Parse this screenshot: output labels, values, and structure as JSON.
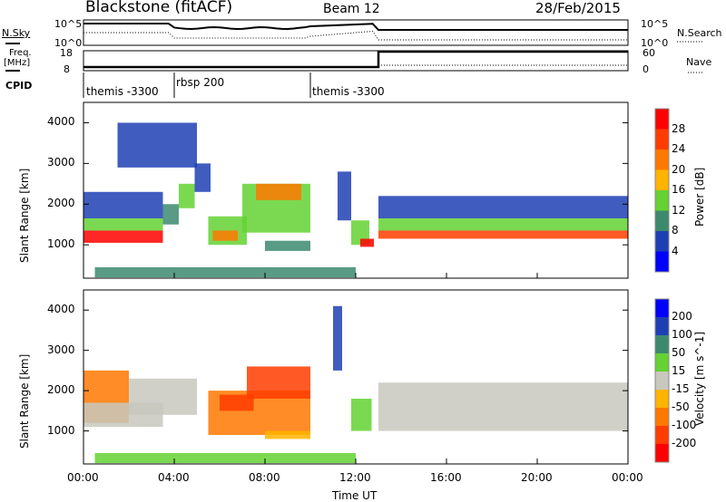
{
  "header": {
    "title": "Blackstone (fitACF)",
    "beam": "Beam 12",
    "date": "28/Feb/2015"
  },
  "noise": {
    "left_label": "N.Sky",
    "right_label": "N.Search",
    "left_ticks": [
      "10^5",
      "10^0"
    ],
    "right_ticks": [
      "10^5",
      "10^0"
    ]
  },
  "freq": {
    "left_label_1": "Freq.",
    "left_label_2": "[MHz]",
    "right_label": "Nave",
    "left_ticks": [
      "18",
      "8"
    ],
    "right_ticks": [
      "60",
      "0"
    ]
  },
  "cpid": {
    "label": "CPID",
    "segments": [
      {
        "name": "themis -3300",
        "start": 0
      },
      {
        "name": "rbsp 200",
        "start": 4
      },
      {
        "name": "themis -3300",
        "start": 10
      }
    ]
  },
  "xaxis": {
    "label": "Time UT",
    "ticks": [
      "00:00",
      "04:00",
      "08:00",
      "12:00",
      "16:00",
      "20:00",
      "00:00"
    ]
  },
  "chart_data": [
    {
      "type": "heatmap",
      "title": "Power",
      "ylabel": "Slant Range [km]",
      "xlabel": "Time UT",
      "xlim": [
        0,
        24
      ],
      "ylim": [
        180,
        4500
      ],
      "yticks": [
        "1000",
        "2000",
        "3000",
        "4000"
      ],
      "colorbar": {
        "label": "Power [dB]",
        "ticks": [
          "28",
          "24",
          "20",
          "16",
          "12",
          "8",
          "4"
        ],
        "colors": [
          "#0000ff",
          "#1e3fb4",
          "#3c8a6e",
          "#64d232",
          "#ffb400",
          "#ff7800",
          "#ff3c00",
          "#ff0000"
        ]
      },
      "regions": [
        {
          "t": [
            0,
            3.5
          ],
          "r": [
            1650,
            2300
          ],
          "v": 6
        },
        {
          "t": [
            0,
            3.5
          ],
          "r": [
            1350,
            1650
          ],
          "v": 14
        },
        {
          "t": [
            0,
            3.5
          ],
          "r": [
            1050,
            1350
          ],
          "v": 28
        },
        {
          "t": [
            3.5,
            4.2
          ],
          "r": [
            1500,
            2000
          ],
          "v": 10
        },
        {
          "t": [
            4.2,
            4.9
          ],
          "r": [
            1900,
            2500
          ],
          "v": 12
        },
        {
          "t": [
            4.9,
            5.6
          ],
          "r": [
            2300,
            3000
          ],
          "v": 6
        },
        {
          "t": [
            1.5,
            5
          ],
          "r": [
            2900,
            4000
          ],
          "v": 4
        },
        {
          "t": [
            5.5,
            7.2
          ],
          "r": [
            1000,
            1700
          ],
          "v": 14
        },
        {
          "t": [
            5.7,
            6.8
          ],
          "r": [
            1100,
            1350
          ],
          "v": 20
        },
        {
          "t": [
            7,
            10
          ],
          "r": [
            1300,
            2500
          ],
          "v": 14
        },
        {
          "t": [
            7.6,
            9.6
          ],
          "r": [
            2100,
            2500
          ],
          "v": 20
        },
        {
          "t": [
            8,
            10
          ],
          "r": [
            850,
            1100
          ],
          "v": 10
        },
        {
          "t": [
            11.2,
            11.8
          ],
          "r": [
            1600,
            2800
          ],
          "v": 6
        },
        {
          "t": [
            11.8,
            12.6
          ],
          "r": [
            1000,
            1600
          ],
          "v": 14
        },
        {
          "t": [
            12.2,
            12.8
          ],
          "r": [
            950,
            1150
          ],
          "v": 28
        },
        {
          "t": [
            13,
            24
          ],
          "r": [
            1650,
            2200
          ],
          "v": 6
        },
        {
          "t": [
            13,
            24
          ],
          "r": [
            1350,
            1650
          ],
          "v": 14
        },
        {
          "t": [
            13,
            24
          ],
          "r": [
            1150,
            1350
          ],
          "v": 26
        },
        {
          "t": [
            0.5,
            12
          ],
          "r": [
            200,
            450
          ],
          "v": 8
        }
      ]
    },
    {
      "type": "heatmap",
      "title": "Velocity",
      "ylabel": "Slant Range [km]",
      "xlabel": "Time UT",
      "xlim": [
        0,
        24
      ],
      "ylim": [
        180,
        4500
      ],
      "yticks": [
        "1000",
        "2000",
        "3000",
        "4000"
      ],
      "colorbar": {
        "label": "Velocity [m s^-1]",
        "ticks": [
          "200",
          "100",
          "50",
          "15",
          "-15",
          "-50",
          "-100",
          "-200"
        ],
        "colors": [
          "#ff0000",
          "#ff3c00",
          "#ff7800",
          "#ffb400",
          "#c8c8be",
          "#64d232",
          "#3c8a6e",
          "#1e3fb4",
          "#0000ff"
        ]
      },
      "regions": [
        {
          "t": [
            0,
            2
          ],
          "r": [
            1200,
            2500
          ],
          "v": -60
        },
        {
          "t": [
            0,
            3.5
          ],
          "r": [
            1100,
            1700
          ],
          "v": 0
        },
        {
          "t": [
            2,
            5
          ],
          "r": [
            1400,
            2300
          ],
          "v": 0
        },
        {
          "t": [
            5.5,
            10
          ],
          "r": [
            900,
            2000
          ],
          "v": -60
        },
        {
          "t": [
            7.2,
            10
          ],
          "r": [
            1800,
            2600
          ],
          "v": -150
        },
        {
          "t": [
            6,
            7.5
          ],
          "r": [
            1500,
            1900
          ],
          "v": -110
        },
        {
          "t": [
            8,
            10
          ],
          "r": [
            800,
            1000
          ],
          "v": -30
        },
        {
          "t": [
            11,
            11.4
          ],
          "r": [
            2500,
            4100
          ],
          "v": 150
        },
        {
          "t": [
            11.8,
            12.7
          ],
          "r": [
            1000,
            1800
          ],
          "v": 30
        },
        {
          "t": [
            13,
            24
          ],
          "r": [
            1000,
            2200
          ],
          "v": 0
        },
        {
          "t": [
            0.5,
            12
          ],
          "r": [
            200,
            450
          ],
          "v": 20
        }
      ]
    }
  ]
}
